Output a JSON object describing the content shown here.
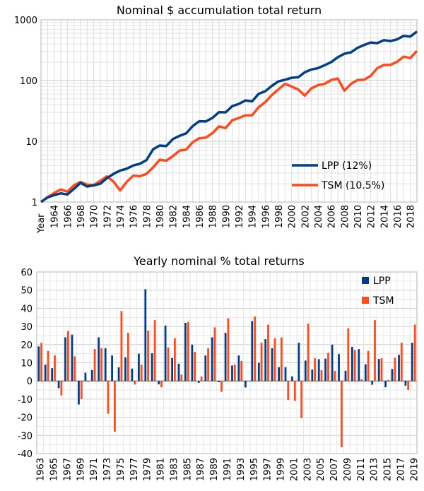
{
  "chart_data": [
    {
      "type": "line",
      "title": "Nominal $ accumulation total return",
      "xlabel": "Year",
      "ylabel": "",
      "yscale": "log",
      "ylim": [
        1,
        1000
      ],
      "yticks": [
        "1",
        "10",
        "100",
        "1000"
      ],
      "xticks": [
        "1964",
        "1966",
        "1968",
        "1970",
        "1972",
        "1974",
        "1976",
        "1978",
        "1980",
        "1982",
        "1984",
        "1986",
        "1988",
        "1990",
        "1992",
        "1994",
        "1996",
        "1998",
        "2000",
        "2002",
        "2004",
        "2006",
        "2008",
        "2010",
        "2012",
        "2014",
        "2016",
        "2018"
      ],
      "x": [
        1962,
        1963,
        1964,
        1965,
        1966,
        1967,
        1968,
        1969,
        1970,
        1971,
        1972,
        1973,
        1974,
        1975,
        1976,
        1977,
        1978,
        1979,
        1980,
        1981,
        1982,
        1983,
        1984,
        1985,
        1986,
        1987,
        1988,
        1989,
        1990,
        1991,
        1992,
        1993,
        1994,
        1995,
        1996,
        1997,
        1998,
        1999,
        2000,
        2001,
        2002,
        2003,
        2004,
        2005,
        2006,
        2007,
        2008,
        2009,
        2010,
        2011,
        2012,
        2013,
        2014,
        2015,
        2016,
        2017,
        2018,
        2019
      ],
      "grid": true,
      "legend_position": "lower-right",
      "series": [
        {
          "name": "LPP (12%)",
          "color": "#003f87",
          "values": [
            1,
            1.19,
            1.3,
            1.39,
            1.33,
            1.65,
            2.07,
            1.8,
            1.88,
            2.0,
            2.48,
            2.91,
            3.3,
            3.54,
            4.0,
            4.27,
            4.91,
            7.39,
            8.52,
            8.36,
            10.9,
            12.3,
            13.5,
            17.8,
            21.4,
            21.2,
            24.3,
            30.2,
            30.0,
            37.9,
            41.2,
            47.0,
            45.4,
            60.5,
            66.6,
            81.9,
            96.9,
            103.0,
            111.0,
            113.0,
            137.0,
            152.0,
            160.0,
            179.0,
            201.0,
            241.0,
            276.0,
            291.0,
            345.0,
            386.0,
            422.0,
            413.0,
            463.0,
            447.0,
            476.0,
            545.0,
            530.0,
            642.0
          ]
        },
        {
          "name": "TSM (10.5%)",
          "color": "#ff4a1c",
          "values": [
            1,
            1.21,
            1.41,
            1.61,
            1.48,
            1.89,
            2.14,
            1.93,
            1.91,
            2.24,
            2.64,
            2.16,
            1.55,
            2.15,
            2.72,
            2.66,
            2.91,
            3.72,
            4.97,
            4.8,
            5.7,
            7.03,
            7.28,
            9.65,
            11.2,
            11.5,
            13.6,
            17.6,
            16.5,
            22.2,
            24.2,
            26.7,
            26.7,
            36.4,
            44.0,
            57.7,
            71.4,
            88.4,
            79.6,
            71.2,
            56.6,
            74.4,
            83.8,
            88.1,
            102.0,
            108.0,
            68.3,
            88.0,
            102.0,
            103.0,
            120.0,
            160.0,
            180.0,
            181.0,
            204.0,
            247.0,
            234.0,
            307.0
          ]
        }
      ]
    },
    {
      "type": "bar",
      "title": "Yearly nominal % total returns",
      "xlabel": "",
      "ylabel": "",
      "ylim": [
        -40,
        60
      ],
      "yticks": [
        "-40",
        "-30",
        "-20",
        "-10",
        "0",
        "10",
        "20",
        "30",
        "40",
        "50",
        "60"
      ],
      "categories": [
        "1963",
        "1964",
        "1965",
        "1966",
        "1967",
        "1968",
        "1969",
        "1970",
        "1971",
        "1972",
        "1973",
        "1974",
        "1975",
        "1976",
        "1977",
        "1978",
        "1979",
        "1980",
        "1981",
        "1982",
        "1983",
        "1984",
        "1985",
        "1986",
        "1987",
        "1988",
        "1989",
        "1990",
        "1991",
        "1992",
        "1993",
        "1994",
        "1995",
        "1996",
        "1997",
        "1998",
        "1999",
        "2000",
        "2001",
        "2002",
        "2003",
        "2004",
        "2005",
        "2006",
        "2007",
        "2008",
        "2009",
        "2010",
        "2011",
        "2012",
        "2013",
        "2014",
        "2015",
        "2016",
        "2017",
        "2018",
        "2019"
      ],
      "xticks": [
        "1963",
        "1965",
        "1967",
        "1969",
        "1971",
        "1973",
        "1975",
        "1977",
        "1979",
        "1981",
        "1983",
        "1985",
        "1987",
        "1989",
        "1991",
        "1993",
        "1995",
        "1997",
        "1999",
        "2001",
        "2003",
        "2005",
        "2007",
        "2009",
        "2011",
        "2013",
        "2015",
        "2017",
        "2019"
      ],
      "grid": true,
      "legend_position": "top-right",
      "series": [
        {
          "name": "LPP",
          "color": "#003f87",
          "values": [
            19,
            9,
            7,
            -4,
            24,
            25.5,
            -13,
            4.5,
            6,
            24,
            18,
            14,
            7.5,
            13,
            6.8,
            15,
            50.5,
            15.3,
            -1.9,
            30.5,
            12.7,
            9.5,
            32,
            20,
            -1,
            14,
            24,
            -0.7,
            26.5,
            8.5,
            14,
            -3.6,
            33,
            10,
            23,
            18,
            7.6,
            7.6,
            2.5,
            21,
            11.2,
            6.3,
            12,
            12.3,
            20,
            14.8,
            5.6,
            18.7,
            17.5,
            9.2,
            -2.1,
            12.1,
            -3.5,
            6.6,
            14.4,
            -2.6,
            21
          ]
        },
        {
          "name": "TSM",
          "color": "#ff4a1c",
          "values": [
            21,
            16.5,
            14,
            -8,
            27.5,
            13.5,
            -10,
            -0.5,
            17.5,
            18,
            -18,
            -28,
            38.5,
            26.5,
            -2,
            9,
            27.8,
            33.5,
            -3.5,
            18.5,
            23.5,
            3.5,
            32.5,
            16,
            2.5,
            18,
            29.5,
            -6,
            34.5,
            9,
            11,
            0,
            35.5,
            21,
            31,
            23.5,
            24,
            -10.5,
            -11,
            -20.5,
            31.5,
            12.5,
            6,
            15.5,
            5.5,
            -36.5,
            29,
            17,
            1,
            16.5,
            33.5,
            12.5,
            0.5,
            12.8,
            21,
            -5,
            31
          ]
        }
      ]
    }
  ]
}
